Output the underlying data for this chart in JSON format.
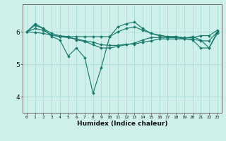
{
  "xlabel": "Humidex (Indice chaleur)",
  "xlim": [
    -0.5,
    23.5
  ],
  "ylim": [
    3.5,
    6.85
  ],
  "yticks": [
    4,
    5,
    6
  ],
  "xticks": [
    0,
    1,
    2,
    3,
    4,
    5,
    6,
    7,
    8,
    9,
    10,
    11,
    12,
    13,
    14,
    15,
    16,
    17,
    18,
    19,
    20,
    21,
    22,
    23
  ],
  "bg_color": "#cff0ea",
  "line_color": "#1a7a6e",
  "grid_color": "#a8ddd6",
  "series": [
    [
      6.0,
      6.2,
      6.1,
      5.85,
      5.75,
      5.25,
      5.5,
      5.2,
      4.1,
      4.9,
      5.85,
      6.15,
      6.25,
      6.3,
      6.1,
      5.95,
      5.9,
      5.85,
      5.85,
      5.8,
      5.85,
      5.75,
      5.5,
      6.0
    ],
    [
      6.0,
      6.25,
      6.1,
      5.95,
      5.88,
      5.85,
      5.85,
      5.85,
      5.85,
      5.85,
      5.85,
      6.0,
      6.1,
      6.15,
      6.05,
      5.95,
      5.88,
      5.85,
      5.85,
      5.82,
      5.82,
      5.88,
      5.88,
      6.05
    ],
    [
      6.0,
      6.1,
      6.05,
      5.9,
      5.85,
      5.85,
      5.75,
      5.7,
      5.6,
      5.5,
      5.5,
      5.55,
      5.6,
      5.65,
      5.75,
      5.82,
      5.82,
      5.82,
      5.82,
      5.78,
      5.78,
      5.72,
      5.72,
      6.0
    ],
    [
      6.0,
      5.98,
      5.95,
      5.9,
      5.85,
      5.82,
      5.78,
      5.72,
      5.68,
      5.6,
      5.58,
      5.58,
      5.62,
      5.62,
      5.68,
      5.72,
      5.78,
      5.78,
      5.78,
      5.78,
      5.75,
      5.5,
      5.5,
      5.95
    ]
  ],
  "marker": "D",
  "markersize": 1.8,
  "linewidth": 0.85
}
